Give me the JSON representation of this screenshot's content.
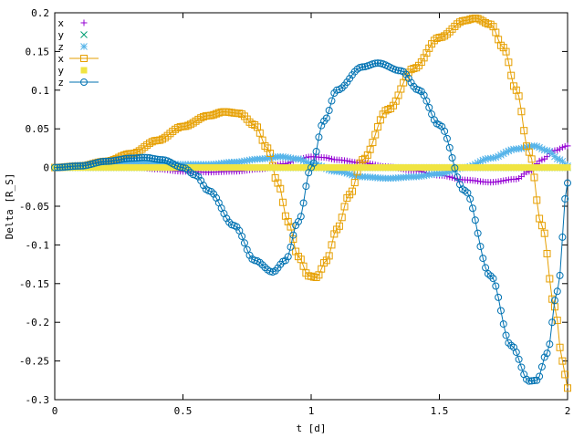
{
  "chart_data": {
    "type": "line",
    "xlabel": "t [d]",
    "ylabel": "Delta [R_S]",
    "xlim": [
      0,
      2
    ],
    "ylim": [
      -0.3,
      0.2
    ],
    "x_ticks": [
      "0",
      "0.5",
      "1",
      "1.5",
      "2"
    ],
    "x_tick_values": [
      0,
      0.5,
      1,
      1.5,
      2
    ],
    "y_ticks": [
      "0.2",
      "0.15",
      "0.1",
      "0.05",
      "0",
      "-0.05",
      "-0.1",
      "-0.15",
      "-0.2",
      "-0.25",
      "-0.3"
    ],
    "y_tick_values": [
      0.2,
      0.15,
      0.1,
      0.05,
      0,
      -0.05,
      -0.1,
      -0.15,
      -0.2,
      -0.25,
      -0.3
    ],
    "grid": false,
    "legend_position": "top-left",
    "series": [
      {
        "name": "x",
        "color": "#9400d3",
        "marker": "plus",
        "line": false,
        "points": [
          [
            0,
            0
          ],
          [
            0.1,
            0.001
          ],
          [
            0.2,
            0.002
          ],
          [
            0.3,
            0.001
          ],
          [
            0.4,
            -0.002
          ],
          [
            0.5,
            -0.005
          ],
          [
            0.6,
            -0.006
          ],
          [
            0.7,
            -0.005
          ],
          [
            0.8,
            -0.002
          ],
          [
            0.9,
            0.005
          ],
          [
            0.95,
            0.011
          ],
          [
            1.0,
            0.014
          ],
          [
            1.05,
            0.013
          ],
          [
            1.1,
            0.01
          ],
          [
            1.2,
            0.006
          ],
          [
            1.3,
            0.001
          ],
          [
            1.4,
            -0.004
          ],
          [
            1.5,
            -0.01
          ],
          [
            1.6,
            -0.016
          ],
          [
            1.7,
            -0.019
          ],
          [
            1.8,
            -0.015
          ],
          [
            1.85,
            -0.005
          ],
          [
            1.9,
            0.01
          ],
          [
            1.95,
            0.022
          ],
          [
            2.0,
            0.028
          ]
        ]
      },
      {
        "name": "y",
        "color": "#009e73",
        "marker": "cross",
        "line": false,
        "points": [
          [
            0,
            0
          ],
          [
            0.5,
            0
          ],
          [
            1.0,
            0
          ],
          [
            1.5,
            0
          ],
          [
            2.0,
            0
          ]
        ]
      },
      {
        "name": "z",
        "color": "#56b4e9",
        "marker": "star",
        "line": false,
        "points": [
          [
            0,
            0
          ],
          [
            0.1,
            0.003
          ],
          [
            0.2,
            0.006
          ],
          [
            0.3,
            0.007
          ],
          [
            0.4,
            0.006
          ],
          [
            0.5,
            0.004
          ],
          [
            0.6,
            0.004
          ],
          [
            0.7,
            0.007
          ],
          [
            0.8,
            0.011
          ],
          [
            0.88,
            0.014
          ],
          [
            0.95,
            0.011
          ],
          [
            1.0,
            0.005
          ],
          [
            1.1,
            -0.005
          ],
          [
            1.2,
            -0.012
          ],
          [
            1.3,
            -0.014
          ],
          [
            1.4,
            -0.012
          ],
          [
            1.5,
            -0.008
          ],
          [
            1.6,
            0.0
          ],
          [
            1.7,
            0.012
          ],
          [
            1.8,
            0.024
          ],
          [
            1.87,
            0.028
          ],
          [
            1.92,
            0.022
          ],
          [
            1.97,
            0.01
          ],
          [
            2.0,
            0.002
          ]
        ]
      },
      {
        "name": "x",
        "color": "#e69f00",
        "marker": "square",
        "line": true,
        "points": [
          [
            0,
            0
          ],
          [
            0.1,
            0.002
          ],
          [
            0.2,
            0.008
          ],
          [
            0.3,
            0.018
          ],
          [
            0.4,
            0.035
          ],
          [
            0.5,
            0.053
          ],
          [
            0.6,
            0.067
          ],
          [
            0.66,
            0.072
          ],
          [
            0.72,
            0.07
          ],
          [
            0.78,
            0.055
          ],
          [
            0.83,
            0.025
          ],
          [
            0.87,
            -0.02
          ],
          [
            0.91,
            -0.07
          ],
          [
            0.95,
            -0.115
          ],
          [
            0.99,
            -0.14
          ],
          [
            1.02,
            -0.142
          ],
          [
            1.06,
            -0.12
          ],
          [
            1.1,
            -0.08
          ],
          [
            1.15,
            -0.035
          ],
          [
            1.2,
            0.01
          ],
          [
            1.3,
            0.075
          ],
          [
            1.4,
            0.128
          ],
          [
            1.5,
            0.168
          ],
          [
            1.6,
            0.19
          ],
          [
            1.64,
            0.193
          ],
          [
            1.7,
            0.185
          ],
          [
            1.75,
            0.155
          ],
          [
            1.8,
            0.1
          ],
          [
            1.85,
            0.02
          ],
          [
            1.9,
            -0.075
          ],
          [
            1.95,
            -0.18
          ],
          [
            1.98,
            -0.25
          ],
          [
            2.0,
            -0.285
          ]
        ]
      },
      {
        "name": "y",
        "color": "#f0e442",
        "marker": "filled-square",
        "line": false,
        "points": [
          [
            0,
            0
          ],
          [
            0.25,
            0
          ],
          [
            0.5,
            0
          ],
          [
            0.75,
            0
          ],
          [
            1.0,
            0
          ],
          [
            1.25,
            0
          ],
          [
            1.5,
            0
          ],
          [
            1.75,
            0
          ],
          [
            2.0,
            0
          ]
        ]
      },
      {
        "name": "z",
        "color": "#0072b2",
        "marker": "circle",
        "line": true,
        "points": [
          [
            0,
            0
          ],
          [
            0.1,
            0.002
          ],
          [
            0.2,
            0.008
          ],
          [
            0.3,
            0.012
          ],
          [
            0.35,
            0.013
          ],
          [
            0.42,
            0.01
          ],
          [
            0.5,
            0.0
          ],
          [
            0.55,
            -0.01
          ],
          [
            0.6,
            -0.03
          ],
          [
            0.7,
            -0.075
          ],
          [
            0.78,
            -0.12
          ],
          [
            0.85,
            -0.135
          ],
          [
            0.9,
            -0.12
          ],
          [
            0.95,
            -0.07
          ],
          [
            1.0,
            0.0
          ],
          [
            1.05,
            0.06
          ],
          [
            1.1,
            0.1
          ],
          [
            1.2,
            0.13
          ],
          [
            1.26,
            0.135
          ],
          [
            1.35,
            0.125
          ],
          [
            1.42,
            0.1
          ],
          [
            1.5,
            0.055
          ],
          [
            1.6,
            -0.03
          ],
          [
            1.7,
            -0.14
          ],
          [
            1.78,
            -0.23
          ],
          [
            1.85,
            -0.276
          ],
          [
            1.88,
            -0.275
          ],
          [
            1.92,
            -0.24
          ],
          [
            1.96,
            -0.16
          ],
          [
            2.0,
            -0.02
          ]
        ]
      }
    ]
  }
}
